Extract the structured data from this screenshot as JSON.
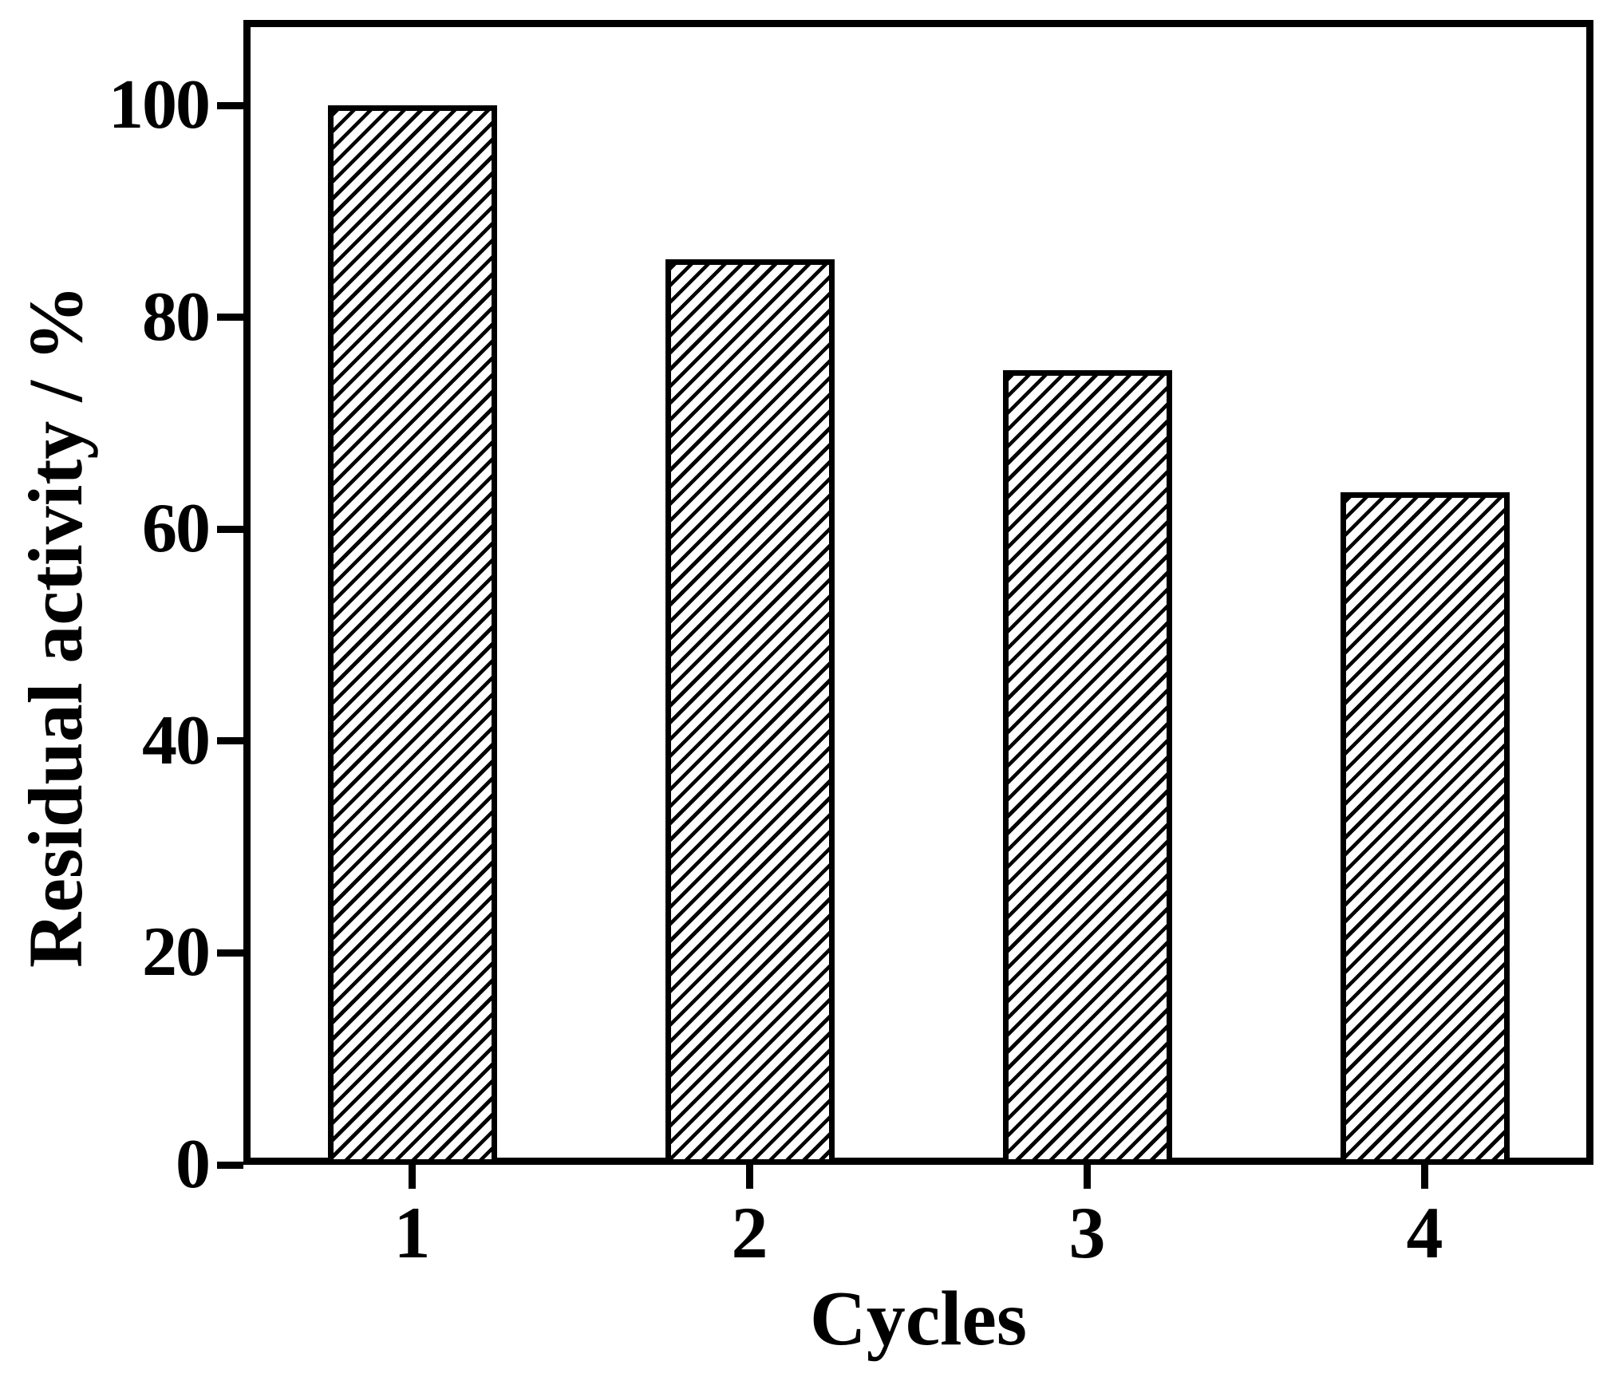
{
  "page": {
    "background_color": "#ffffff",
    "foreground_color": "#000000"
  },
  "chart_data": {
    "type": "bar",
    "title": "",
    "categories": [
      "1",
      "2",
      "3",
      "4"
    ],
    "values": [
      100,
      85.5,
      75,
      63.5
    ],
    "xlabel": "Cycles",
    "ylabel": "Residual activity / %",
    "ylim": [
      0,
      108
    ],
    "yticks": [
      0,
      20,
      40,
      60,
      80,
      100
    ],
    "grid": false,
    "legend": false,
    "bar_style": {
      "fill": "#ffffff",
      "hatch": "forward-diagonal",
      "edge_color": "#000000"
    },
    "frame_color": "#000000",
    "text_color": "#000000"
  }
}
